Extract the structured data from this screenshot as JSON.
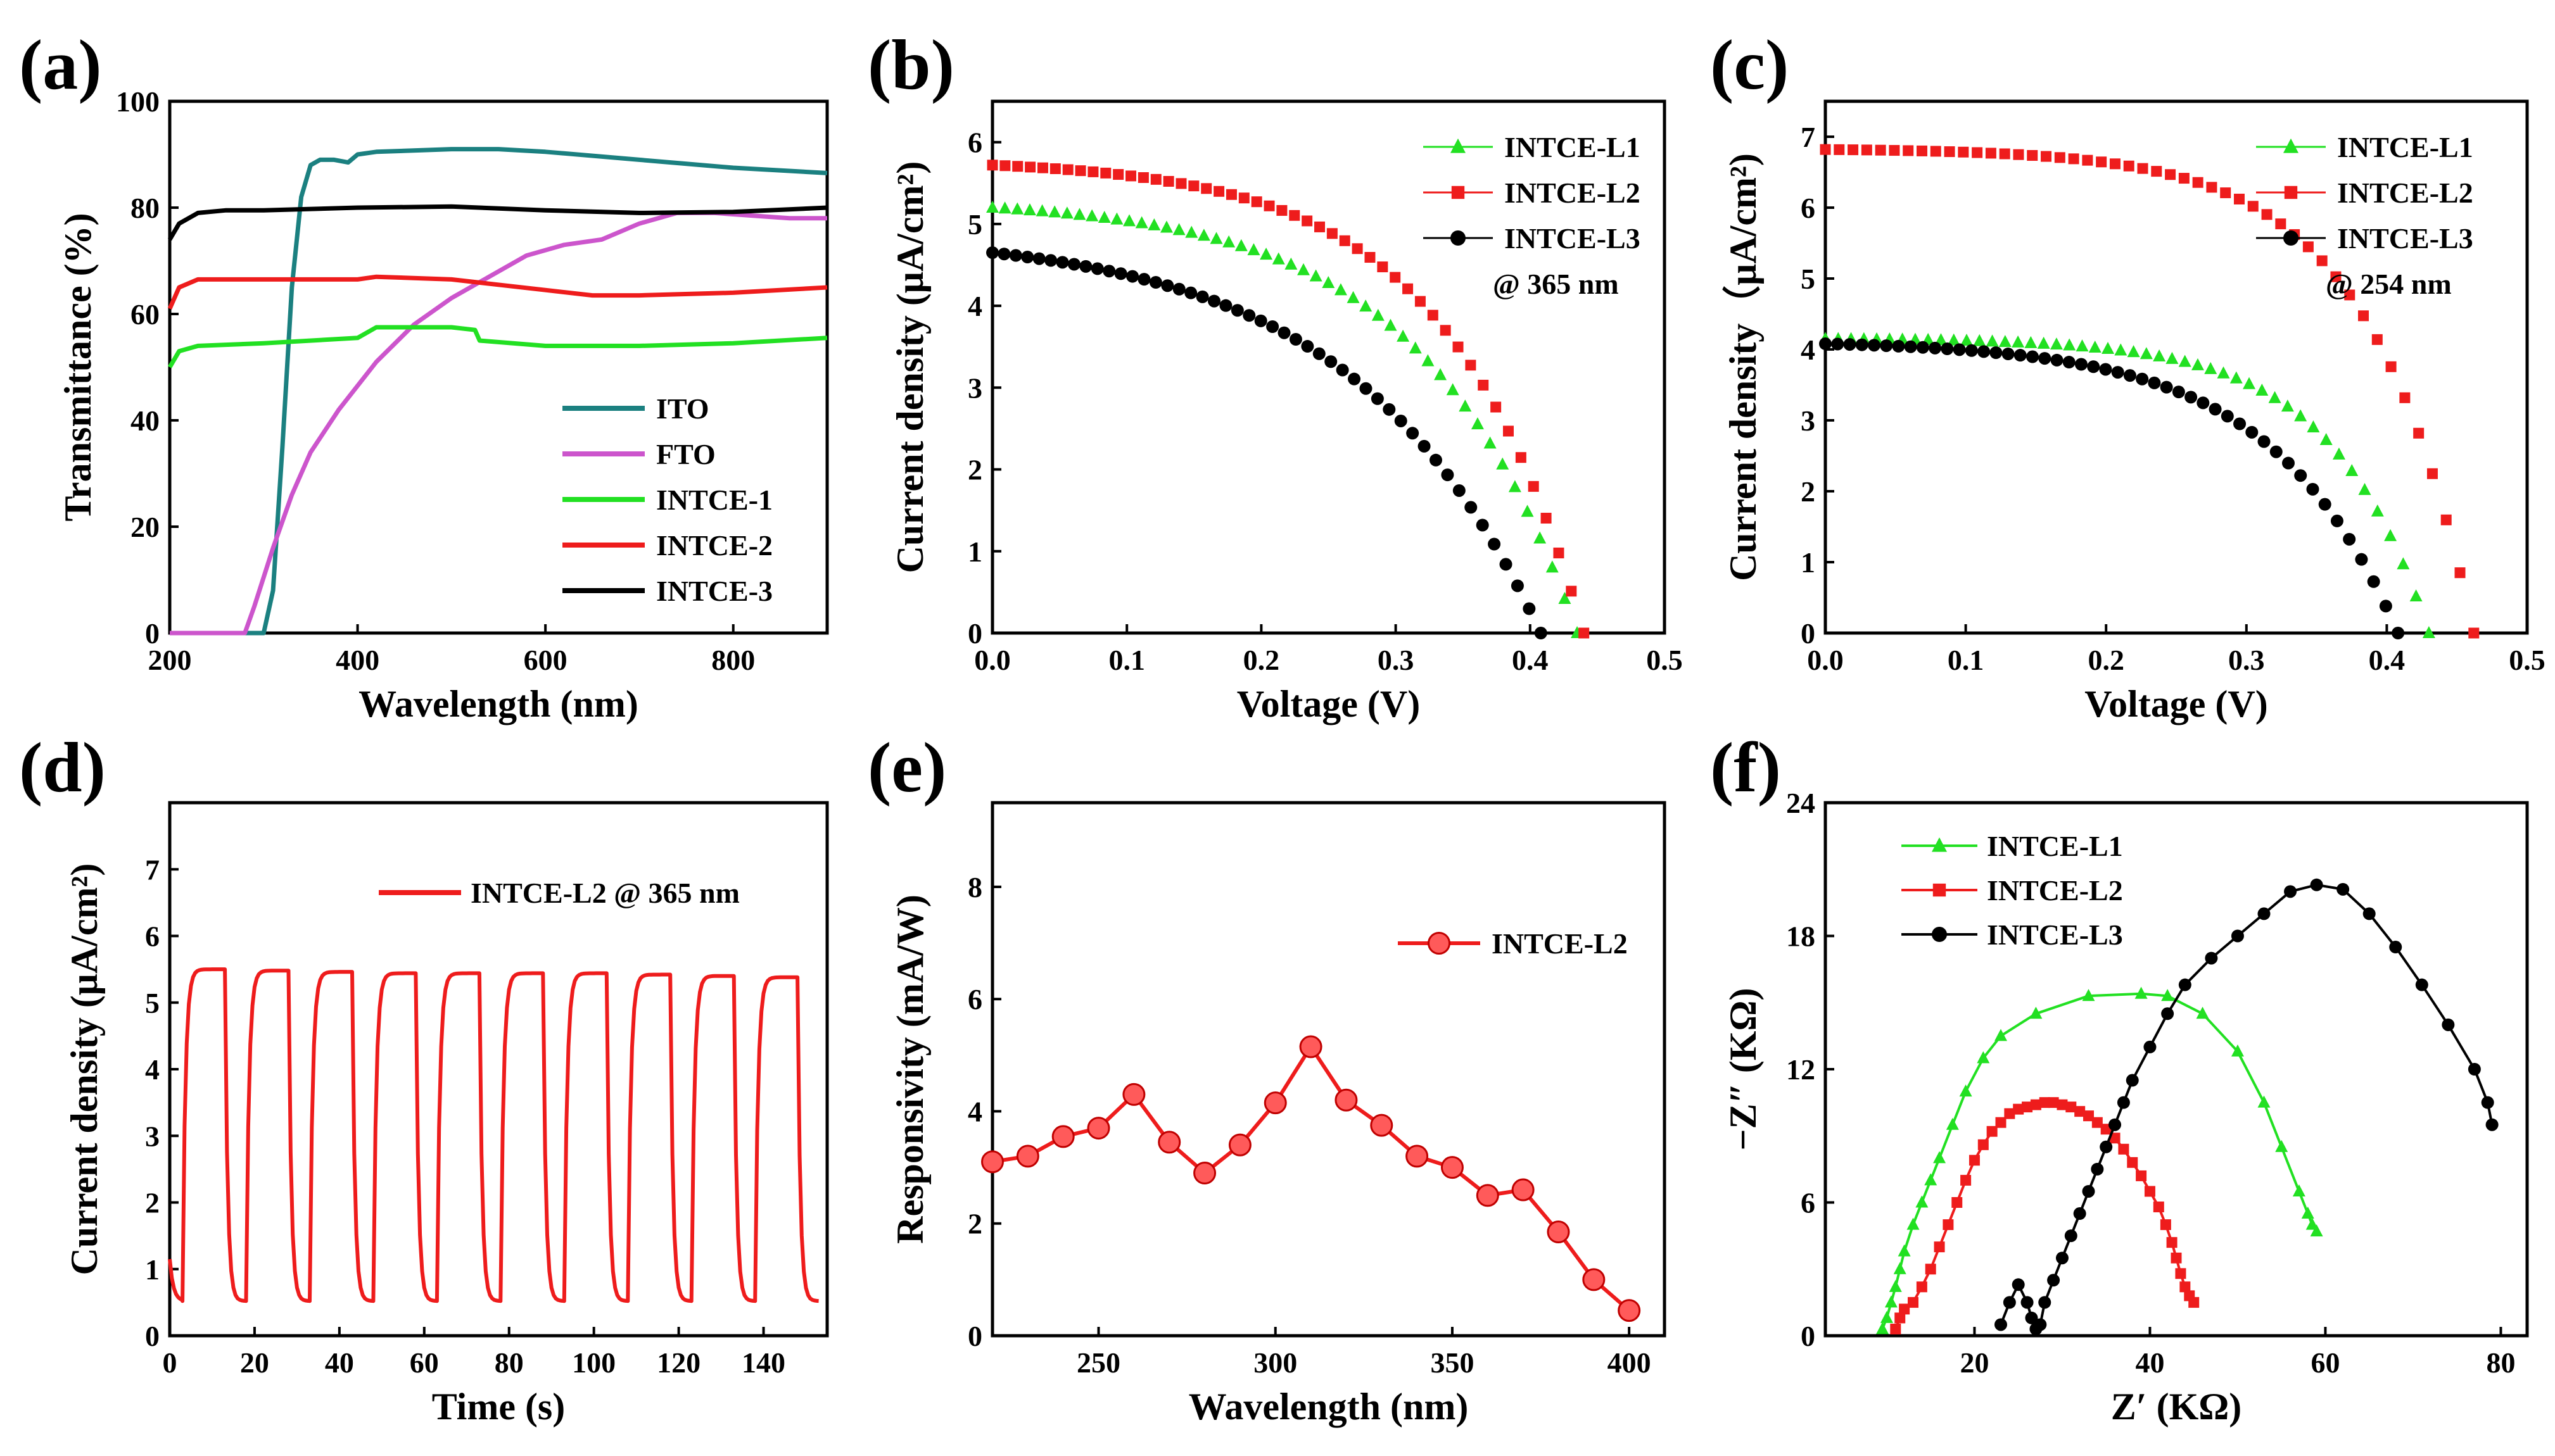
{
  "panel_labels": [
    "(a)",
    "(b)",
    "(c)",
    "(d)",
    "(e)",
    "(f)"
  ],
  "colors": {
    "teal": "#1b8080",
    "magenta": "#cc55cc",
    "green": "#22e022",
    "red": "#ee1c1c",
    "black": "#000000"
  },
  "chart_data": [
    {
      "id": "a",
      "type": "line",
      "xlabel": "Wavelength (nm)",
      "ylabel": "Transmittance (%)",
      "xlim": [
        200,
        900
      ],
      "ylim": [
        0,
        100
      ],
      "xticks": [
        200,
        400,
        600,
        800
      ],
      "yticks": [
        0,
        20,
        40,
        60,
        80,
        100
      ],
      "legend": [
        "ITO",
        "FTO",
        "INTCE-1",
        "INTCE-2",
        "INTCE-3"
      ],
      "series": [
        {
          "name": "ITO",
          "color": "#1b8080",
          "x": [
            200,
            300,
            310,
            320,
            330,
            340,
            350,
            360,
            375,
            390,
            400,
            420,
            500,
            550,
            600,
            700,
            800,
            900
          ],
          "y": [
            0,
            0,
            8,
            35,
            65,
            82,
            88,
            89,
            89,
            88.5,
            90,
            90.5,
            91,
            91,
            90.5,
            89,
            87.5,
            86.5
          ]
        },
        {
          "name": "FTO",
          "color": "#cc55cc",
          "x": [
            200,
            280,
            290,
            310,
            330,
            350,
            380,
            420,
            460,
            500,
            540,
            580,
            620,
            660,
            700,
            740,
            780,
            820,
            860,
            900
          ],
          "y": [
            0,
            0,
            5,
            16,
            26,
            34,
            42,
            51,
            58,
            63,
            67,
            71,
            73,
            74,
            77,
            79,
            79,
            78.5,
            78,
            78
          ]
        },
        {
          "name": "INTCE-1",
          "color": "#22e022",
          "x": [
            200,
            210,
            230,
            300,
            400,
            420,
            500,
            525,
            530,
            600,
            700,
            800,
            900
          ],
          "y": [
            50,
            53,
            54,
            54.5,
            55.5,
            57.5,
            57.5,
            57,
            55,
            54,
            54,
            54.5,
            55.5
          ]
        },
        {
          "name": "INTCE-2",
          "color": "#ee1c1c",
          "x": [
            200,
            210,
            230,
            300,
            400,
            420,
            500,
            600,
            650,
            700,
            800,
            900
          ],
          "y": [
            61,
            65,
            66.5,
            66.5,
            66.5,
            67,
            66.5,
            64.5,
            63.5,
            63.5,
            64,
            65
          ]
        },
        {
          "name": "INTCE-3",
          "color": "#000000",
          "x": [
            200,
            210,
            230,
            260,
            300,
            400,
            500,
            600,
            700,
            800,
            900
          ],
          "y": [
            74,
            77,
            79,
            79.5,
            79.5,
            80,
            80.2,
            79.5,
            79,
            79.2,
            80
          ]
        }
      ]
    },
    {
      "id": "b",
      "type": "scatter",
      "xlabel": "Voltage (V)",
      "ylabel": "Current density (μA/cm²)",
      "xlim": [
        0,
        0.5
      ],
      "ylim": [
        0,
        6.5
      ],
      "xticks": [
        0.0,
        0.1,
        0.2,
        0.3,
        0.4,
        0.5
      ],
      "yticks": [
        0,
        1,
        2,
        3,
        4,
        5,
        6
      ],
      "annotation": "@ 365 nm",
      "series": [
        {
          "name": "INTCE-L1",
          "color": "#22e022",
          "marker": "triangle",
          "isc": 5.2,
          "voc": 0.435,
          "shape": 0.26
        },
        {
          "name": "INTCE-L2",
          "color": "#ee1c1c",
          "marker": "square",
          "isc": 5.72,
          "voc": 0.44,
          "shape": 0.23
        },
        {
          "name": "INTCE-L3",
          "color": "#000000",
          "marker": "circle",
          "isc": 4.65,
          "voc": 0.408,
          "shape": 0.34
        }
      ]
    },
    {
      "id": "c",
      "type": "scatter",
      "xlabel": "Voltage  (V)",
      "ylabel": "Current density（μA/cm²)",
      "xlim": [
        0,
        0.5
      ],
      "ylim": [
        0,
        7.5
      ],
      "xticks": [
        0.0,
        0.1,
        0.2,
        0.3,
        0.4,
        0.5
      ],
      "yticks": [
        0,
        1,
        2,
        3,
        4,
        5,
        6,
        7
      ],
      "annotation": "@ 254 nm",
      "series": [
        {
          "name": "INTCE-L1",
          "color": "#22e022",
          "marker": "triangle",
          "isc": 4.15,
          "voc": 0.43,
          "shape": 0.16
        },
        {
          "name": "INTCE-L2",
          "color": "#ee1c1c",
          "marker": "square",
          "isc": 6.82,
          "voc": 0.462,
          "shape": 0.16
        },
        {
          "name": "INTCE-L3",
          "color": "#000000",
          "marker": "circle",
          "isc": 4.08,
          "voc": 0.408,
          "shape": 0.22
        }
      ]
    },
    {
      "id": "d",
      "type": "line",
      "xlabel": "Time (s)",
      "ylabel": "Current density (μA/cm²)",
      "xlim": [
        0,
        155
      ],
      "ylim": [
        0,
        8
      ],
      "xticks": [
        0,
        20,
        40,
        60,
        80,
        100,
        120,
        140
      ],
      "yticks": [
        0,
        1,
        2,
        3,
        4,
        5,
        6,
        7
      ],
      "legend": [
        "INTCE-L2 @ 365 nm"
      ],
      "period": 15,
      "on_start": 3,
      "on_duration": 10,
      "cycles": 10,
      "peaks": [
        5.5,
        5.48,
        5.46,
        5.44,
        5.44,
        5.44,
        5.44,
        5.42,
        5.4,
        5.38
      ],
      "minimum": 0.52,
      "start_value": 1.15
    },
    {
      "id": "e",
      "type": "line",
      "xlabel": "Wavelength (nm)",
      "ylabel": "Responsivity (mA/W)",
      "xlim": [
        220,
        410
      ],
      "ylim": [
        0,
        9.5
      ],
      "xticks": [
        250,
        300,
        350,
        400
      ],
      "yticks": [
        0,
        2,
        4,
        6,
        8
      ],
      "legend": [
        "INTCE-L2"
      ],
      "series": [
        {
          "name": "INTCE-L2",
          "color": "#ee1c1c",
          "marker": "sphere",
          "x": [
            220,
            230,
            240,
            250,
            260,
            270,
            280,
            290,
            300,
            310,
            320,
            330,
            340,
            350,
            360,
            370,
            380,
            390,
            400
          ],
          "y": [
            3.1,
            3.2,
            3.55,
            3.7,
            4.3,
            3.45,
            2.9,
            3.4,
            4.15,
            5.15,
            4.2,
            3.75,
            3.2,
            3.0,
            2.5,
            2.6,
            1.85,
            1.0,
            0.45
          ]
        }
      ]
    },
    {
      "id": "f",
      "type": "scatter",
      "xlabel": "Z′ (KΩ)",
      "ylabel": "−Z″ (KΩ)",
      "xlim": [
        3,
        83
      ],
      "ylim": [
        0,
        24
      ],
      "xticks": [
        20,
        40,
        60,
        80
      ],
      "yticks": [
        0,
        6,
        12,
        18,
        24
      ],
      "legend": [
        "INTCE-L1",
        "INTCE-L2",
        "INTCE-L3"
      ],
      "series": [
        {
          "name": "INTCE-L1",
          "color": "#22e022",
          "marker": "triangle",
          "x": [
            9.5,
            10,
            10.5,
            11,
            11.5,
            12,
            13,
            14,
            15,
            16,
            17.5,
            19,
            21,
            23,
            27,
            33,
            39,
            42,
            46,
            50,
            53,
            55,
            57,
            58,
            58.5,
            59
          ],
          "y": [
            0.3,
            0.8,
            1.5,
            2.2,
            3,
            3.8,
            5,
            6,
            7,
            8,
            9.5,
            11,
            12.5,
            13.5,
            14.5,
            15.3,
            15.4,
            15.3,
            14.5,
            12.8,
            10.5,
            8.5,
            6.5,
            5.5,
            5,
            4.7
          ]
        },
        {
          "name": "INTCE-L2",
          "color": "#ee1c1c",
          "marker": "square",
          "x": [
            11,
            11.5,
            12,
            13,
            14,
            15,
            16,
            17,
            18,
            19,
            20,
            21,
            22,
            23,
            24,
            25,
            26,
            27,
            28,
            29,
            30,
            31,
            32,
            33,
            34,
            35,
            36,
            37,
            38,
            39,
            40,
            41,
            41.8,
            42.5,
            43,
            43.5,
            44,
            44.5,
            45
          ],
          "y": [
            0.3,
            0.8,
            1.2,
            1.5,
            2.2,
            3,
            4,
            5,
            6,
            7,
            7.9,
            8.6,
            9.2,
            9.6,
            10,
            10.2,
            10.3,
            10.4,
            10.5,
            10.5,
            10.4,
            10.3,
            10.1,
            9.9,
            9.6,
            9.3,
            8.9,
            8.4,
            7.8,
            7.2,
            6.5,
            5.8,
            5,
            4.2,
            3.5,
            2.8,
            2.2,
            1.8,
            1.5
          ]
        },
        {
          "name": "INTCE-L3",
          "color": "#000000",
          "marker": "circle",
          "x": [
            23,
            24,
            25,
            26,
            26.5,
            27,
            27.5,
            28,
            29,
            30,
            31,
            32,
            33,
            34,
            35,
            36,
            37,
            38,
            40,
            42,
            44,
            47,
            50,
            53,
            56,
            59,
            62,
            65,
            68,
            71,
            74,
            77,
            78.5,
            79
          ],
          "y": [
            0.5,
            1.5,
            2.3,
            1.5,
            0.8,
            0.3,
            0.5,
            1.5,
            2.5,
            3.5,
            4.5,
            5.5,
            6.5,
            7.5,
            8.5,
            9.5,
            10.5,
            11.5,
            13,
            14.5,
            15.8,
            17,
            18,
            19,
            20,
            20.3,
            20.1,
            19,
            17.5,
            15.8,
            14,
            12,
            10.5,
            9.5
          ]
        }
      ]
    }
  ]
}
